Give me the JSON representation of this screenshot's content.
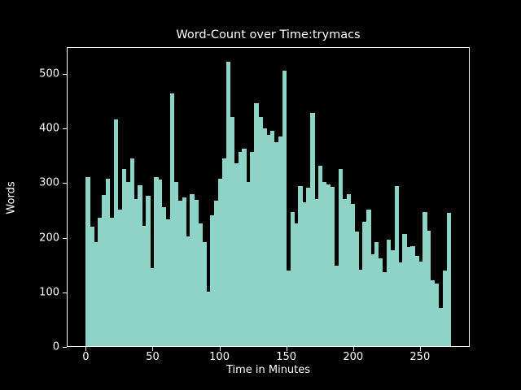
{
  "chart_data": {
    "type": "bar",
    "title": "Word-Count over Time:trymacs",
    "xlabel": "Time in Minutes",
    "ylabel": "Words",
    "bin_width_minutes": 3,
    "x_bin_starts": [
      0,
      3,
      6,
      9,
      12,
      15,
      18,
      21,
      24,
      27,
      30,
      33,
      36,
      39,
      42,
      45,
      48,
      51,
      54,
      57,
      60,
      63,
      66,
      69,
      72,
      75,
      78,
      81,
      84,
      87,
      90,
      93,
      96,
      99,
      102,
      105,
      108,
      111,
      114,
      117,
      120,
      123,
      126,
      129,
      132,
      135,
      138,
      141,
      144,
      147,
      150,
      153,
      156,
      159,
      162,
      165,
      168,
      171,
      174,
      177,
      180,
      183,
      186,
      189,
      192,
      195,
      198,
      201,
      204,
      207,
      210,
      213,
      216,
      219,
      222,
      225,
      228,
      231,
      234,
      237,
      240,
      243,
      246,
      249,
      252,
      255,
      258,
      261,
      264,
      267,
      270
    ],
    "values": [
      310,
      218,
      190,
      235,
      277,
      307,
      235,
      415,
      250,
      325,
      300,
      343,
      270,
      295,
      220,
      275,
      143,
      310,
      305,
      255,
      232,
      463,
      300,
      266,
      273,
      201,
      278,
      268,
      224,
      190,
      100,
      240,
      266,
      306,
      343,
      520,
      420,
      335,
      355,
      362,
      300,
      355,
      445,
      419,
      398,
      387,
      394,
      374,
      384,
      505,
      138,
      245,
      225,
      293,
      264,
      290,
      427,
      270,
      330,
      300,
      296,
      292,
      147,
      324,
      270,
      278,
      261,
      210,
      140,
      228,
      250,
      168,
      190,
      160,
      135,
      195,
      175,
      293,
      153,
      205,
      181,
      183,
      165,
      155,
      246,
      212,
      121,
      115,
      70,
      138,
      244
    ],
    "xlim": [
      -13.65,
      286.65
    ],
    "ylim": [
      0,
      546
    ],
    "x_ticks": [
      0,
      50,
      100,
      150,
      200,
      250
    ],
    "y_ticks": [
      0,
      100,
      200,
      300,
      400,
      500
    ],
    "grid": false,
    "legend": null,
    "colors": {
      "background": "#000000",
      "foreground": "#ffffff",
      "bar": "#8dd3c7"
    }
  }
}
